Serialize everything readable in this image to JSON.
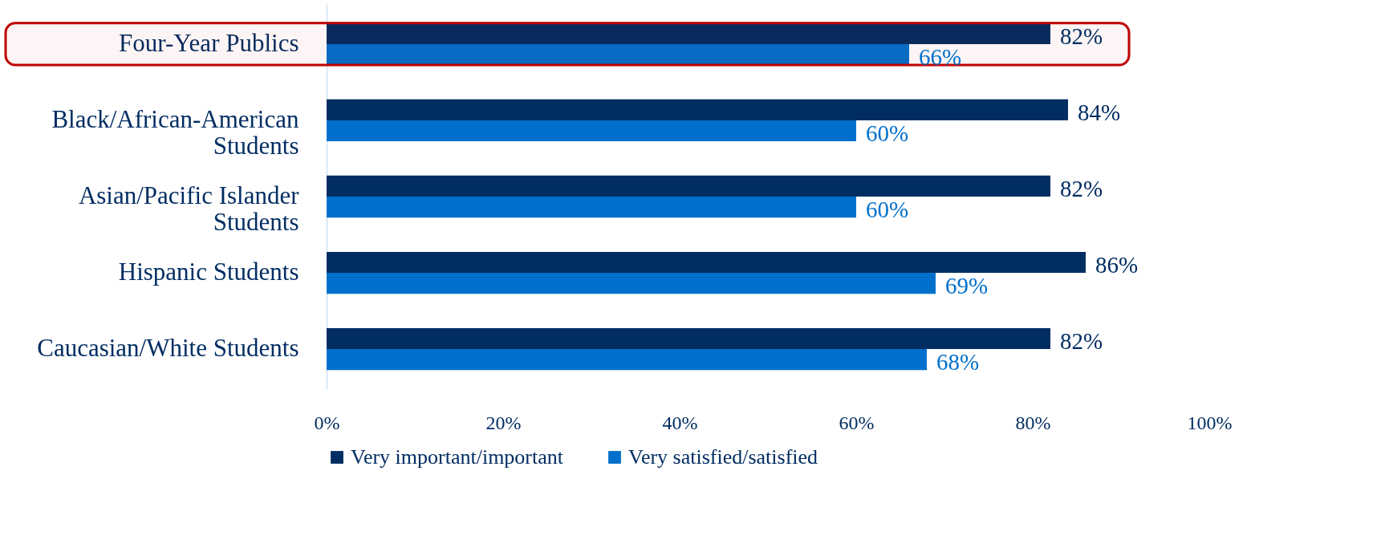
{
  "chart_data": {
    "type": "bar",
    "orientation": "horizontal",
    "categories": [
      "Four-Year Publics",
      "Black/African-American Students",
      "Asian/Pacific Islander Students",
      "Hispanic Students",
      "Caucasian/White Students"
    ],
    "series": [
      {
        "name": "Very important/important",
        "color": "#002d62",
        "values": [
          82,
          84,
          82,
          86,
          82
        ],
        "value_labels": [
          "82%",
          "84%",
          "82%",
          "86%",
          "82%"
        ]
      },
      {
        "name": "Very satisfied/satisfied",
        "color": "#0070cc",
        "values": [
          66,
          60,
          60,
          69,
          68
        ],
        "value_labels": [
          "66%",
          "60%",
          "60%",
          "69%",
          "68%"
        ]
      }
    ],
    "xlim": [
      0,
      100
    ],
    "xticks": [
      {
        "value": 0,
        "label": "0%"
      },
      {
        "value": 20,
        "label": "20%"
      },
      {
        "value": 40,
        "label": "40%"
      },
      {
        "value": 60,
        "label": "60%"
      },
      {
        "value": 80,
        "label": "80%"
      },
      {
        "value": 100,
        "label": "100%"
      }
    ],
    "bands": [
      {
        "axis": "y",
        "from": "Four-Year Publics",
        "to": "Four-Year Publics",
        "color": "#c00000"
      }
    ],
    "grid": false,
    "legend": "bottom"
  }
}
